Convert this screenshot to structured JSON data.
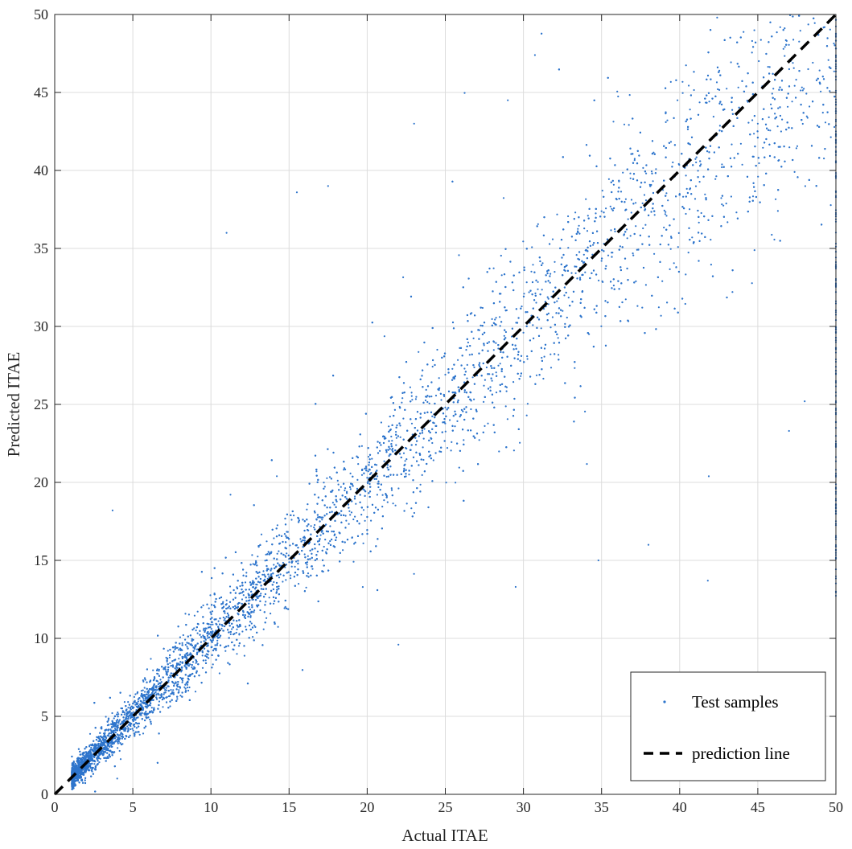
{
  "chart_data": {
    "type": "scatter",
    "xlabel": "Actual ITAE",
    "ylabel": "Predicted ITAE",
    "xlim": [
      0,
      50
    ],
    "ylim": [
      0,
      50
    ],
    "x_ticks": [
      0,
      5,
      10,
      15,
      20,
      25,
      30,
      35,
      40,
      45,
      50
    ],
    "y_ticks": [
      0,
      5,
      10,
      15,
      20,
      25,
      30,
      35,
      40,
      45,
      50
    ],
    "x_tick_labels": [
      "0",
      "5",
      "10",
      "15",
      "20",
      "25",
      "30",
      "35",
      "40",
      "45",
      "50"
    ],
    "y_tick_labels": [
      "0",
      "5",
      "10",
      "15",
      "20",
      "25",
      "30",
      "35",
      "40",
      "45",
      "50"
    ],
    "grid": true,
    "legend_position": "bottom-right",
    "legend": [
      "Test samples",
      "prediction line"
    ],
    "series": [
      {
        "name": "Test samples",
        "kind": "scatter",
        "color": "#2e75cc",
        "approx_count": 20000,
        "trend": "points scattered around y = x, dense at low values (1-15), widening spread at higher values, with a cluster of predicted values capped at x = 50",
        "sample_points": [
          [
            1.2,
            1.5
          ],
          [
            2,
            2.1
          ],
          [
            3,
            3.4
          ],
          [
            4,
            4.2
          ],
          [
            5,
            4.8
          ],
          [
            6,
            6.5
          ],
          [
            7,
            6.8
          ],
          [
            8,
            8.3
          ],
          [
            10,
            10.2
          ],
          [
            12,
            12.5
          ],
          [
            15,
            15.1
          ],
          [
            18,
            18.4
          ],
          [
            20,
            20.3
          ],
          [
            25,
            24.8
          ],
          [
            30,
            29.6
          ],
          [
            35,
            34.2
          ],
          [
            40,
            38.5
          ],
          [
            45,
            43
          ],
          [
            50,
            47
          ],
          [
            3.7,
            18.2
          ],
          [
            11,
            36
          ],
          [
            15.5,
            38.6
          ],
          [
            17.5,
            39
          ],
          [
            23,
            43
          ],
          [
            29,
            44.5
          ],
          [
            22,
            9.6
          ],
          [
            29.5,
            13.3
          ],
          [
            34.8,
            15
          ],
          [
            41.8,
            13.7
          ],
          [
            38,
            16
          ],
          [
            47,
            23.3
          ],
          [
            48,
            25.2
          ]
        ]
      },
      {
        "name": "prediction line",
        "kind": "line",
        "style": "dashed",
        "color": "#000000",
        "x": [
          0,
          50
        ],
        "y": [
          0,
          50
        ]
      }
    ]
  }
}
